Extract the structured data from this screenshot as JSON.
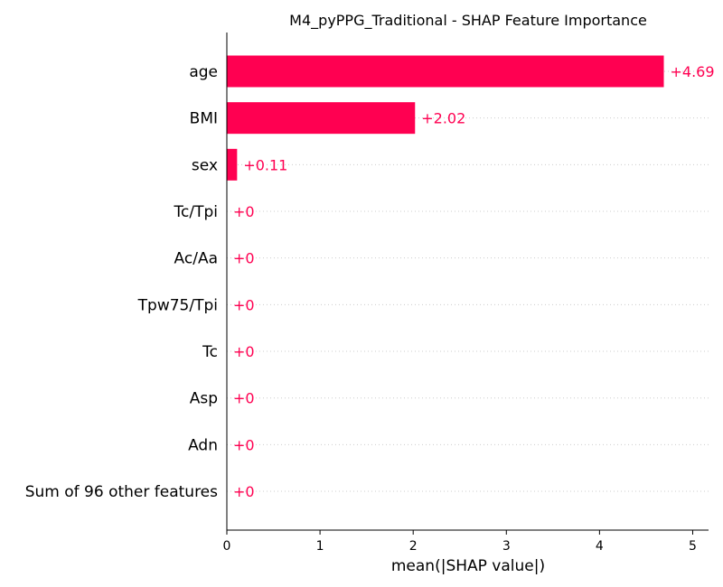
{
  "chart_data": {
    "type": "bar",
    "orientation": "horizontal",
    "title": "M4_pyPPG_Traditional - SHAP Feature Importance",
    "xlabel": "mean(|SHAP value|)",
    "ylabel": "",
    "categories": [
      "age",
      "BMI",
      "sex",
      "Tc/Tpi",
      "Ac/Aa",
      "Tpw75/Tpi",
      "Tc",
      "Asp",
      "Adn",
      "Sum of 96 other features"
    ],
    "values": [
      4.69,
      2.02,
      0.11,
      0,
      0,
      0,
      0,
      0,
      0,
      0
    ],
    "value_labels": [
      "+4.69",
      "+2.02",
      "+0.11",
      "+0",
      "+0",
      "+0",
      "+0",
      "+0",
      "+0",
      "+0"
    ],
    "xlim": [
      0,
      5.17
    ],
    "xticks": [
      0,
      1,
      2,
      3,
      4,
      5
    ],
    "xtick_labels": [
      "0",
      "1",
      "2",
      "3",
      "4",
      "5"
    ],
    "grid": "dotted horizontal lines per row",
    "legend": "none",
    "bar_color": "#ff0051",
    "label_color": "#ff0051",
    "grid_color": "#cccccc"
  }
}
